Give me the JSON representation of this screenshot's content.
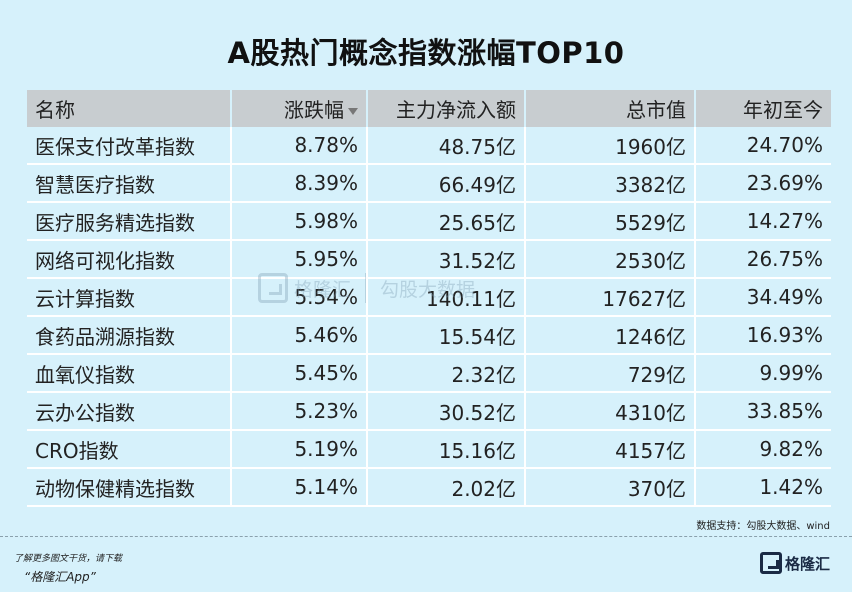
{
  "title": "A股热门概念指数涨幅TOP10",
  "table": {
    "headers": {
      "name": "名称",
      "change": "涨跌幅",
      "inflow": "主力净流入额",
      "mcap": "总市值",
      "ytd": "年初至今"
    },
    "rows": [
      {
        "name": "医保支付改革指数",
        "change": "8.78%",
        "inflow": "48.75亿",
        "mcap": "1960亿",
        "ytd": "24.70%"
      },
      {
        "name": "智慧医疗指数",
        "change": "8.39%",
        "inflow": "66.49亿",
        "mcap": "3382亿",
        "ytd": "23.69%"
      },
      {
        "name": "医疗服务精选指数",
        "change": "5.98%",
        "inflow": "25.65亿",
        "mcap": "5529亿",
        "ytd": "14.27%"
      },
      {
        "name": "网络可视化指数",
        "change": "5.95%",
        "inflow": "31.52亿",
        "mcap": "2530亿",
        "ytd": "26.75%"
      },
      {
        "name": "云计算指数",
        "change": "5.54%",
        "inflow": "140.11亿",
        "mcap": "17627亿",
        "ytd": "34.49%"
      },
      {
        "name": "食药品溯源指数",
        "change": "5.46%",
        "inflow": "15.54亿",
        "mcap": "1246亿",
        "ytd": "16.93%"
      },
      {
        "name": "血氧仪指数",
        "change": "5.45%",
        "inflow": "2.32亿",
        "mcap": "729亿",
        "ytd": "9.99%"
      },
      {
        "name": "云办公指数",
        "change": "5.23%",
        "inflow": "30.52亿",
        "mcap": "4310亿",
        "ytd": "33.85%"
      },
      {
        "name": "CRO指数",
        "change": "5.19%",
        "inflow": "15.16亿",
        "mcap": "4157亿",
        "ytd": "9.82%"
      },
      {
        "name": "动物保健精选指数",
        "change": "5.14%",
        "inflow": "2.02亿",
        "mcap": "370亿",
        "ytd": "1.42%"
      }
    ]
  },
  "watermark": {
    "brand": "格隆汇",
    "text": "勾股大数据"
  },
  "source": "数据支持：勾股大数据、wind",
  "footer": {
    "note": "了解更多图文干货，请下载",
    "app": "“格隆汇App”",
    "brand": "格隆汇"
  },
  "colors": {
    "positive": "#c8102e",
    "header_bg": "#c8cdd0",
    "page_bg": "#d6f1fb"
  }
}
